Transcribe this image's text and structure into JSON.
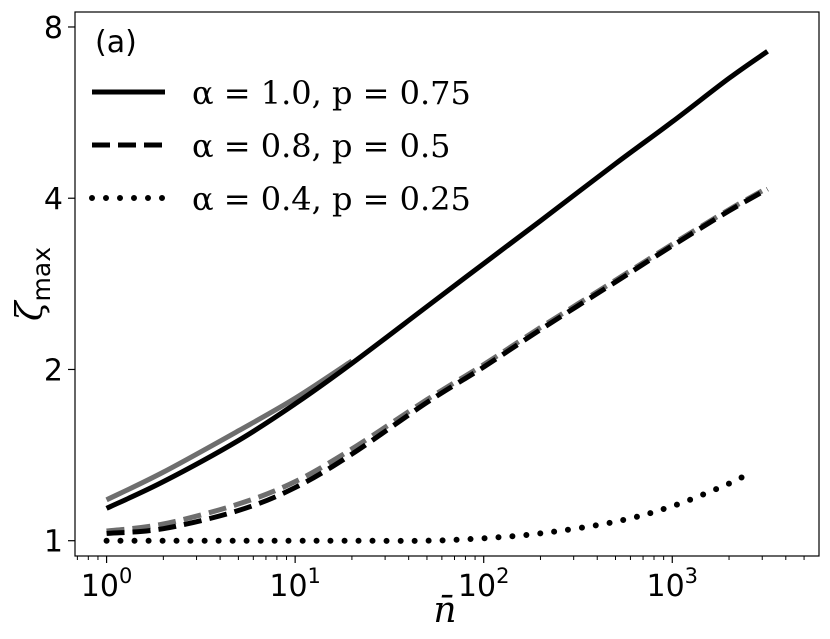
{
  "chart_data": {
    "type": "line",
    "panel_label": "(a)",
    "xlabel": "n̄",
    "ylabel": "ζ",
    "ylabel_sub": "max",
    "xscale": "log",
    "yscale": "log",
    "xlim": [
      0.68,
      6000
    ],
    "ylim": [
      0.94,
      8.5
    ],
    "xticks": [
      {
        "value": 1,
        "base": "10",
        "exp": "0"
      },
      {
        "value": 10,
        "base": "10",
        "exp": "1"
      },
      {
        "value": 100,
        "base": "10",
        "exp": "2"
      },
      {
        "value": 1000,
        "base": "10",
        "exp": "3"
      }
    ],
    "yticks": [
      {
        "value": 1,
        "label": "1"
      },
      {
        "value": 2,
        "label": "2"
      },
      {
        "value": 4,
        "label": "4"
      },
      {
        "value": 8,
        "label": "8"
      }
    ],
    "legend_position": "top-left",
    "grid": false,
    "series": [
      {
        "name": "α = 1.0, p = 0.75",
        "style": "solid",
        "color": "#000000",
        "x": [
          1,
          2,
          5,
          10,
          20,
          50,
          100,
          200,
          500,
          1000,
          2000,
          3200
        ],
        "y": [
          1.14,
          1.27,
          1.5,
          1.74,
          2.05,
          2.58,
          3.07,
          3.65,
          4.6,
          5.45,
          6.5,
          7.25
        ]
      },
      {
        "name": "α = 1.0, p = 0.75 (gray)",
        "style": "solid",
        "color": "#6e6e6e",
        "x": [
          1,
          2,
          5,
          10,
          20
        ],
        "y": [
          1.18,
          1.32,
          1.56,
          1.78,
          2.07
        ]
      },
      {
        "name": "α = 0.8, p = 0.5",
        "style": "dashed",
        "color": "#000000",
        "x": [
          1,
          2,
          5,
          10,
          20,
          50,
          100,
          200,
          500,
          1000,
          2000,
          3200
        ],
        "y": [
          1.03,
          1.05,
          1.13,
          1.24,
          1.42,
          1.75,
          2.02,
          2.35,
          2.85,
          3.3,
          3.8,
          4.15
        ]
      },
      {
        "name": "α = 0.8, p = 0.5 (gray)",
        "style": "dashed",
        "color": "#6e6e6e",
        "x": [
          1,
          2,
          5,
          10,
          20,
          50,
          100,
          200,
          500,
          1000,
          2000,
          3200
        ],
        "y": [
          1.04,
          1.07,
          1.16,
          1.27,
          1.45,
          1.77,
          2.04,
          2.37,
          2.87,
          3.32,
          3.82,
          4.17
        ]
      },
      {
        "name": "α = 0.4, p = 0.25",
        "style": "dotted",
        "color": "#000000",
        "x": [
          1,
          2,
          5,
          10,
          20,
          50,
          100,
          200,
          500,
          1000,
          2000,
          2600
        ],
        "y": [
          1.0,
          1.0,
          1.0,
          1.0,
          1.0,
          1.0,
          1.01,
          1.03,
          1.08,
          1.15,
          1.26,
          1.32
        ]
      }
    ],
    "legend": [
      {
        "label": "α = 1.0, p = 0.75",
        "style": "solid"
      },
      {
        "label": "α = 0.8, p = 0.5",
        "style": "dashed"
      },
      {
        "label": "α = 0.4, p = 0.25",
        "style": "dotted"
      }
    ]
  }
}
